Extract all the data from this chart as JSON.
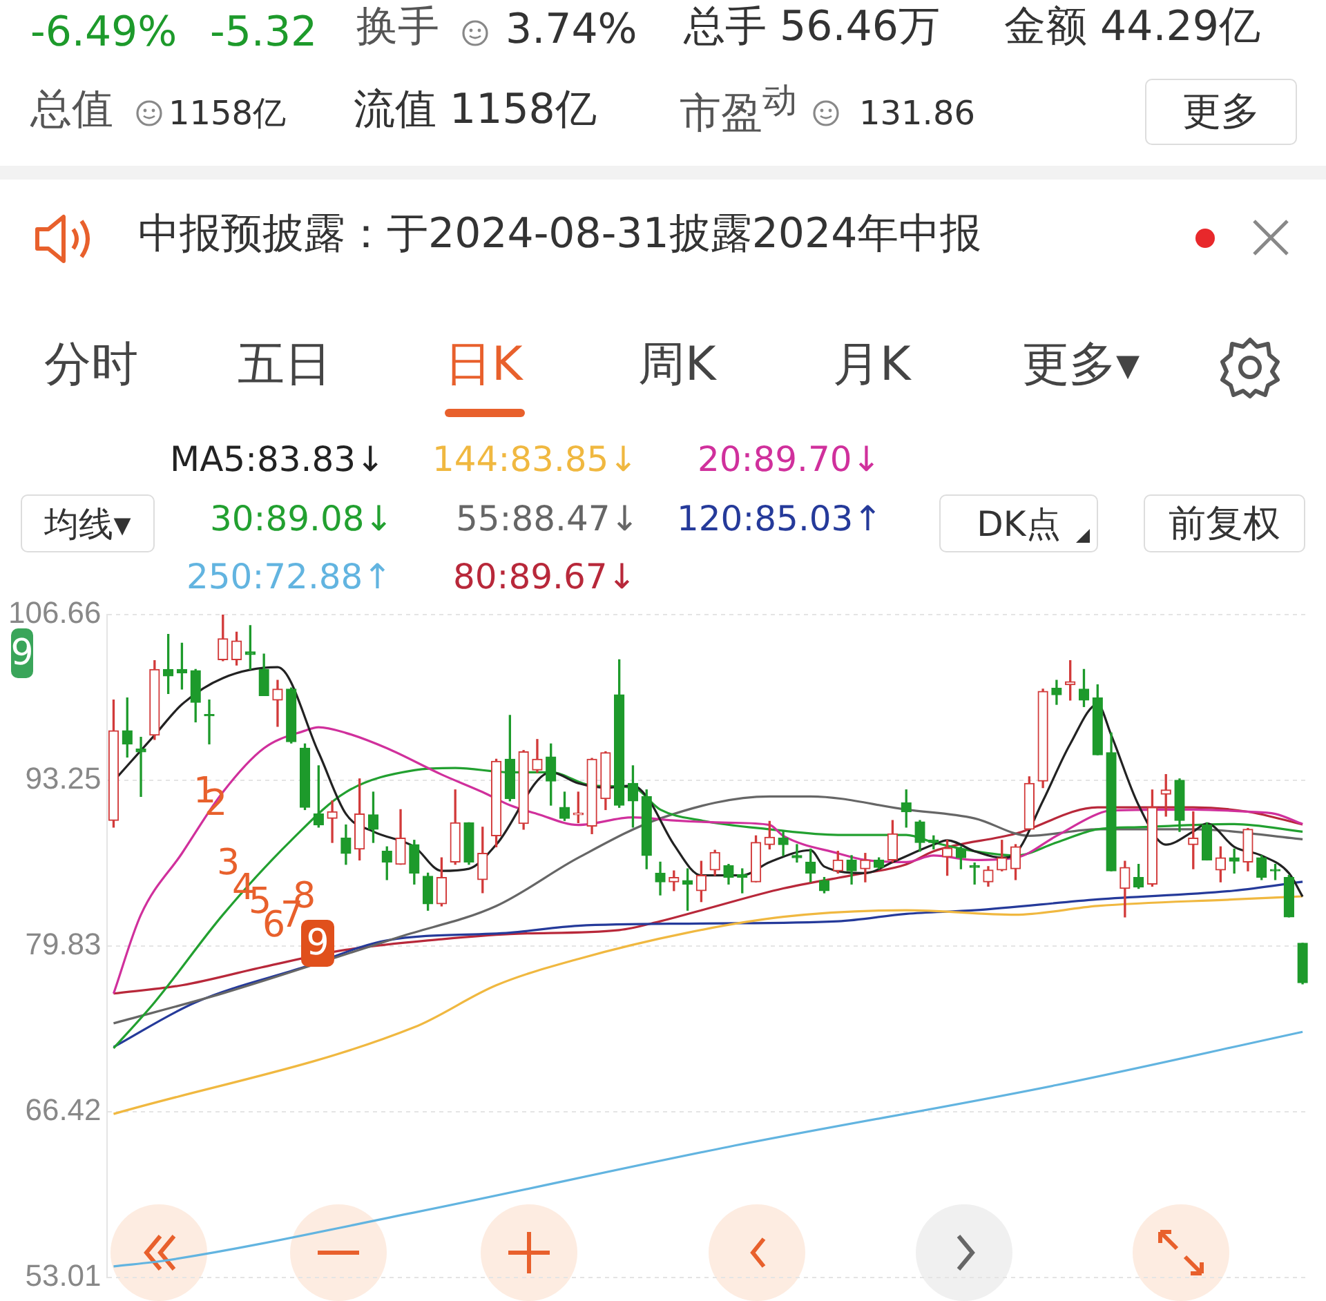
{
  "chart_data": {
    "type": "candlestick",
    "categories": [
      null,
      null,
      null,
      null,
      null,
      null,
      null,
      null,
      null,
      null,
      null,
      null,
      null,
      null,
      null,
      null,
      null,
      null,
      null,
      null,
      null,
      null,
      null,
      null,
      null,
      null,
      null,
      null,
      null,
      null,
      null,
      null,
      null,
      null,
      null,
      null,
      null,
      null,
      null,
      null,
      null,
      null,
      null,
      null,
      null,
      null,
      null,
      null,
      null,
      null,
      null,
      null,
      null,
      null,
      null,
      null,
      null,
      null,
      null,
      null,
      null,
      null,
      null,
      null,
      null,
      null,
      null,
      null,
      null,
      null,
      null,
      null,
      null,
      null,
      null,
      null,
      null,
      null,
      null,
      null,
      null,
      null,
      null,
      null,
      null,
      null,
      null,
      null
    ],
    "ohlc": [
      [
        89.99,
        99.74,
        89.45,
        97.26
      ],
      [
        97.26,
        99.92,
        95.13,
        96.19
      ],
      [
        95.77,
        96.73,
        91.94,
        95.55
      ],
      [
        96.9,
        102.93,
        96.55,
        102.22
      ],
      [
        102.22,
        105.06,
        100.27,
        101.69
      ],
      [
        102.22,
        104.35,
        100.63,
        101.94
      ],
      [
        102.12,
        102.22,
        97.97,
        99.56
      ],
      [
        98.57,
        99.74,
        96.19,
        98.46
      ],
      [
        103.0,
        106.66,
        102.93,
        104.71
      ],
      [
        103.0,
        105.24,
        102.58,
        104.53
      ],
      [
        103.64,
        105.77,
        102.22,
        103.43
      ],
      [
        102.22,
        103.47,
        100.1,
        100.1
      ],
      [
        99.74,
        101.34,
        97.61,
        100.63
      ],
      [
        100.63,
        100.73,
        96.26,
        96.37
      ],
      [
        95.84,
        96.19,
        90.87,
        91.05
      ],
      [
        90.52,
        94.42,
        89.45,
        89.63
      ],
      [
        90.16,
        91.58,
        88.21,
        90.7
      ],
      [
        88.57,
        89.63,
        86.44,
        87.33
      ],
      [
        87.68,
        93.36,
        86.79,
        90.52
      ],
      [
        90.45,
        92.29,
        88.21,
        89.28
      ],
      [
        87.5,
        87.86,
        85.2,
        86.62
      ],
      [
        86.44,
        90.87,
        86.44,
        88.57
      ],
      [
        88.04,
        88.39,
        84.84,
        85.73
      ],
      [
        85.48,
        85.73,
        82.72,
        83.25
      ],
      [
        83.25,
        86.97,
        83.07,
        85.38
      ],
      [
        86.62,
        92.47,
        86.44,
        89.81
      ],
      [
        89.81,
        89.81,
        86.44,
        86.62
      ],
      [
        85.2,
        89.45,
        84.14,
        87.33
      ],
      [
        88.75,
        94.95,
        87.86,
        94.78
      ],
      [
        94.95,
        98.5,
        91.58,
        91.76
      ],
      [
        89.74,
        95.66,
        89.28,
        95.56
      ],
      [
        94.07,
        96.55,
        93.89,
        94.95
      ],
      [
        95.13,
        96.19,
        91.23,
        93.18
      ],
      [
        91.05,
        92.29,
        89.99,
        90.16
      ],
      [
        90.45,
        92.29,
        89.81,
        90.59
      ],
      [
        89.53,
        95.02,
        88.92,
        94.95
      ],
      [
        91.76,
        95.56,
        90.87,
        95.49
      ],
      [
        100.17,
        103.0,
        91.05,
        91.23
      ],
      [
        93.0,
        94.42,
        89.45,
        91.58
      ],
      [
        91.94,
        92.47,
        86.08,
        87.15
      ],
      [
        85.73,
        86.62,
        83.96,
        85.02
      ],
      [
        85.02,
        85.91,
        84.31,
        85.38
      ],
      [
        85.13,
        86.08,
        82.72,
        84.84
      ],
      [
        84.31,
        86.69,
        83.42,
        85.55
      ],
      [
        85.98,
        87.58,
        85.55,
        87.4
      ],
      [
        86.33,
        86.44,
        84.84,
        85.38
      ],
      [
        85.62,
        86.08,
        84.13,
        85.38
      ],
      [
        85.02,
        88.75,
        85.02,
        88.21
      ],
      [
        88.04,
        89.92,
        87.68,
        88.64
      ],
      [
        88.57,
        89.17,
        87.15,
        88.04
      ],
      [
        87.15,
        88.04,
        86.62,
        86.97
      ],
      [
        86.62,
        87.68,
        85.02,
        85.73
      ],
      [
        85.13,
        85.38,
        84.13,
        84.31
      ],
      [
        85.91,
        87.5,
        85.73,
        86.79
      ],
      [
        86.79,
        87.15,
        84.84,
        85.91
      ],
      [
        86.08,
        87.33,
        85.02,
        86.79
      ],
      [
        86.79,
        86.97,
        86.08,
        86.19
      ],
      [
        86.79,
        89.99,
        86.62,
        88.92
      ],
      [
        91.41,
        92.47,
        89.45,
        90.7
      ],
      [
        89.88,
        89.99,
        87.5,
        88.21
      ],
      [
        88.39,
        88.75,
        87.68,
        88.21
      ],
      [
        87.04,
        88.39,
        85.55,
        87.75
      ],
      [
        87.68,
        87.86,
        86.08,
        86.97
      ],
      [
        86.33,
        86.55,
        84.84,
        86.19
      ],
      [
        85.02,
        86.26,
        84.67,
        85.98
      ],
      [
        85.98,
        88.39,
        85.91,
        86.97
      ],
      [
        86.08,
        88.04,
        85.2,
        87.86
      ],
      [
        89.28,
        93.53,
        89.28,
        93.0
      ],
      [
        93.18,
        100.63,
        92.65,
        100.45
      ],
      [
        100.7,
        101.34,
        99.39,
        100.17
      ],
      [
        100.98,
        102.93,
        99.74,
        101.23
      ],
      [
        100.63,
        102.22,
        99.21,
        99.74
      ],
      [
        99.92,
        100.98,
        95.31,
        95.31
      ],
      [
        95.49,
        97.08,
        85.91,
        85.91
      ],
      [
        84.49,
        86.69,
        82.18,
        86.19
      ],
      [
        85.38,
        86.44,
        84.49,
        84.6
      ],
      [
        84.84,
        92.47,
        84.67,
        91.05
      ],
      [
        92.12,
        93.71,
        90.34,
        92.47
      ],
      [
        93.25,
        93.36,
        89.1,
        89.99
      ],
      [
        88.04,
        90.7,
        86.08,
        88.57
      ],
      [
        89.63,
        89.81,
        86.79,
        86.79
      ],
      [
        85.98,
        87.86,
        85.02,
        86.97
      ],
      [
        86.97,
        87.68,
        85.73,
        86.69
      ],
      [
        86.62,
        89.35,
        85.91,
        89.28
      ],
      [
        86.97,
        87.15,
        85.2,
        85.38
      ],
      [
        85.98,
        86.44,
        85.2,
        85.91
      ],
      [
        85.38,
        85.55,
        82.18,
        82.18
      ],
      [
        80.05,
        80.05,
        76.76,
        76.86
      ]
    ],
    "colors": [
      "#d23a3a",
      "#1d9a2b",
      "#1d9a2b",
      "#d23a3a",
      "#1d9a2b",
      "#1d9a2b",
      "#1d9a2b",
      "#1d9a2b",
      "#d23a3a",
      "#d23a3a",
      "#1d9a2b",
      "#1d9a2b",
      "#d23a3a",
      "#1d9a2b",
      "#1d9a2b",
      "#1d9a2b",
      "#d23a3a",
      "#1d9a2b",
      "#d23a3a",
      "#1d9a2b",
      "#1d9a2b",
      "#d23a3a",
      "#1d9a2b",
      "#1d9a2b",
      "#d23a3a",
      "#d23a3a",
      "#1d9a2b",
      "#d23a3a",
      "#d23a3a",
      "#1d9a2b",
      "#d23a3a",
      "#d23a3a",
      "#1d9a2b",
      "#1d9a2b",
      "#d23a3a",
      "#d23a3a",
      "#d23a3a",
      "#1d9a2b",
      "#1d9a2b",
      "#1d9a2b",
      "#1d9a2b",
      "#d23a3a",
      "#1d9a2b",
      "#d23a3a",
      "#d23a3a",
      "#1d9a2b",
      "#1d9a2b",
      "#d23a3a",
      "#d23a3a",
      "#1d9a2b",
      "#1d9a2b",
      "#1d9a2b",
      "#1d9a2b",
      "#d23a3a",
      "#1d9a2b",
      "#d23a3a",
      "#1d9a2b",
      "#d23a3a",
      "#1d9a2b",
      "#1d9a2b",
      "#1d9a2b",
      "#d23a3a",
      "#1d9a2b",
      "#1d9a2b",
      "#d23a3a",
      "#d23a3a",
      "#d23a3a",
      "#d23a3a",
      "#d23a3a",
      "#1d9a2b",
      "#d23a3a",
      "#1d9a2b",
      "#1d9a2b",
      "#1d9a2b",
      "#d23a3a",
      "#1d9a2b",
      "#d23a3a",
      "#d23a3a",
      "#1d9a2b",
      "#d23a3a",
      "#1d9a2b",
      "#d23a3a",
      "#1d9a2b",
      "#d23a3a",
      "#1d9a2b",
      "#1d9a2b",
      "#1d9a2b",
      "#1d9a2b"
    ],
    "series": [
      {
        "type": "line",
        "name": "MA5:83.83↓",
        "color": "#222222",
        "values": [
          93.18,
          null,
          null,
          96.9,
          null,
          99.39,
          null,
          null,
          101.52,
          null,
          null,
          null,
          102.4,
          null,
          null,
          95.49,
          null,
          90.52,
          null,
          89.1,
          null,
          null,
          87.86,
          null,
          85.91,
          null,
          86.08,
          null,
          88.04,
          null,
          null,
          null,
          93.89,
          null,
          93.0,
          null,
          92.65,
          null,
          92.82,
          91.94,
          null,
          88.04,
          null,
          85.55,
          null,
          null,
          85.55,
          null,
          86.62,
          null,
          null,
          87.58,
          86.26,
          null,
          null,
          85.73,
          null,
          86.62,
          null,
          null,
          88.04,
          88.39,
          null,
          87.5,
          null,
          86.97,
          87.33,
          null,
          91.58,
          null,
          96.19,
          null,
          99.39,
          96.9,
          null,
          91.23,
          null,
          88.04,
          null,
          89.1,
          89.74,
          null,
          87.86,
          null,
          87.15,
          null,
          85.73,
          83.83
        ]
      },
      {
        "type": "line",
        "name": "144:83.85↓",
        "color": "#f0b840",
        "values": [
          66.23,
          null,
          null,
          null,
          null,
          null,
          null,
          null,
          null,
          null,
          null,
          null,
          null,
          null,
          null,
          null,
          null,
          null,
          null,
          null,
          null,
          null,
          73.25,
          null,
          null,
          null,
          null,
          null,
          76.65,
          null,
          null,
          null,
          null,
          null,
          78.78,
          null,
          null,
          null,
          null,
          null,
          null,
          null,
          80.91,
          null,
          null,
          null,
          null,
          null,
          null,
          82.19,
          null,
          null,
          null,
          null,
          null,
          null,
          null,
          null,
          82.72,
          null,
          null,
          null,
          null,
          null,
          null,
          null,
          82.36,
          null,
          null,
          null,
          null,
          null,
          83.07,
          null,
          null,
          null,
          null,
          null,
          null,
          null,
          null,
          null,
          83.6,
          null,
          null,
          null,
          null,
          83.85
        ]
      },
      {
        "type": "line",
        "name": "20:89.70↓",
        "color": "#d0309c",
        "values": [
          75.98,
          null,
          82.36,
          null,
          null,
          87.33,
          null,
          null,
          92.29,
          null,
          null,
          95.84,
          null,
          null,
          97.26,
          97.54,
          null,
          97.08,
          null,
          null,
          95.84,
          null,
          null,
          null,
          93.71,
          null,
          null,
          92.29,
          null,
          91.23,
          null,
          90.52,
          null,
          null,
          89.63,
          null,
          null,
          null,
          90.24,
          null,
          null,
          89.99,
          null,
          null,
          null,
          89.81,
          null,
          null,
          89.63,
          88.75,
          null,
          null,
          null,
          87.33,
          null,
          86.79,
          null,
          null,
          86.62,
          null,
          87.15,
          null,
          null,
          86.79,
          null,
          null,
          86.97,
          null,
          null,
          88.75,
          null,
          null,
          90.52,
          90.8,
          null,
          null,
          null,
          null,
          null,
          90.87,
          null,
          null,
          null,
          90.7,
          null,
          90.52,
          null,
          89.7
        ]
      },
      {
        "type": "line",
        "name": "30:89.08↓",
        "color": "#22a030",
        "values": [
          71.55,
          null,
          null,
          75.27,
          null,
          null,
          null,
          null,
          82.36,
          null,
          null,
          null,
          null,
          88.39,
          null,
          null,
          null,
          92.29,
          null,
          null,
          null,
          null,
          94.06,
          null,
          null,
          94.24,
          null,
          null,
          null,
          93.89,
          null,
          null,
          93.89,
          null,
          null,
          92.82,
          null,
          null,
          92.65,
          null,
          90.87,
          null,
          null,
          89.99,
          null,
          null,
          null,
          null,
          89.28,
          null,
          null,
          null,
          null,
          88.82,
          null,
          null,
          null,
          null,
          88.82,
          null,
          88.21,
          null,
          null,
          87.5,
          null,
          null,
          87.15,
          null,
          null,
          88.21,
          null,
          null,
          89.28,
          null,
          null,
          89.45,
          null,
          null,
          null,
          null,
          null,
          null,
          89.7,
          null,
          null,
          null,
          null,
          89.08
        ]
      },
      {
        "type": "line",
        "name": "55:88.47↓",
        "color": "#666666",
        "values": [
          73.57,
          null,
          null,
          null,
          null,
          null,
          null,
          null,
          76.0,
          null,
          null,
          null,
          null,
          null,
          null,
          null,
          null,
          null,
          79.52,
          null,
          null,
          80.59,
          null,
          null,
          null,
          null,
          null,
          null,
          83.07,
          null,
          null,
          null,
          null,
          null,
          86.97,
          null,
          null,
          null,
          null,
          null,
          90.16,
          null,
          null,
          null,
          null,
          null,
          null,
          null,
          91.94,
          null,
          null,
          91.94,
          null,
          null,
          null,
          null,
          null,
          null,
          90.87,
          null,
          null,
          null,
          null,
          90.16,
          null,
          null,
          null,
          88.75,
          null,
          null,
          null,
          null,
          89.28,
          null,
          null,
          null,
          null,
          null,
          null,
          89.28,
          null,
          null,
          null,
          null,
          null,
          null,
          null,
          88.47
        ]
      },
      {
        "type": "line",
        "name": "120:85.03↑",
        "color": "#253a9a",
        "values": [
          71.65,
          null,
          null,
          null,
          null,
          null,
          75.27,
          null,
          null,
          null,
          null,
          null,
          null,
          null,
          78.14,
          null,
          null,
          null,
          null,
          null,
          80.28,
          null,
          null,
          null,
          null,
          null,
          null,
          null,
          null,
          80.91,
          null,
          null,
          null,
          null,
          81.47,
          null,
          null,
          null,
          null,
          null,
          null,
          null,
          null,
          81.65,
          null,
          null,
          null,
          null,
          null,
          null,
          null,
          null,
          null,
          81.83,
          null,
          null,
          null,
          null,
          82.43,
          null,
          null,
          null,
          null,
          82.72,
          null,
          null,
          null,
          null,
          null,
          null,
          null,
          null,
          83.6,
          null,
          null,
          null,
          null,
          null,
          null,
          null,
          null,
          null,
          84.31,
          null,
          null,
          null,
          null,
          85.03
        ]
      },
      {
        "type": "line",
        "name": "250:72.88↑",
        "color": "#62b4e0",
        "values": [
          53.89,
          null,
          null,
          null,
          54.4,
          null,
          null,
          null,
          null,
          null,
          null,
          null,
          null,
          null,
          null,
          null,
          null,
          null,
          null,
          null,
          null,
          null,
          58.25,
          null,
          null,
          null,
          null,
          null,
          null,
          null,
          null,
          null,
          null,
          null,
          null,
          null,
          null,
          null,
          null,
          null,
          null,
          null,
          null,
          null,
          null,
          63.57,
          null,
          null,
          null,
          null,
          null,
          null,
          null,
          null,
          null,
          null,
          null,
          null,
          null,
          null,
          null,
          null,
          null,
          null,
          null,
          null,
          null,
          null,
          null,
          68.57,
          null,
          null,
          null,
          null,
          null,
          null,
          null,
          null,
          null,
          null,
          null,
          null,
          null,
          null,
          null,
          null,
          null,
          72.88
        ]
      },
      {
        "type": "line",
        "name": "80:89.67↓",
        "color": "#b8283a",
        "values": [
          75.98,
          null,
          null,
          null,
          null,
          76.65,
          null,
          null,
          null,
          null,
          null,
          78.14,
          null,
          null,
          null,
          null,
          null,
          79.52,
          null,
          null,
          null,
          null,
          null,
          null,
          80.38,
          null,
          null,
          null,
          null,
          80.8,
          null,
          null,
          null,
          null,
          null,
          null,
          null,
          81.12,
          null,
          null,
          81.83,
          null,
          null,
          82.72,
          null,
          null,
          null,
          null,
          null,
          84.49,
          null,
          null,
          null,
          null,
          85.55,
          null,
          null,
          null,
          86.44,
          null,
          87.5,
          null,
          null,
          null,
          null,
          null,
          88.92,
          null,
          null,
          null,
          null,
          null,
          91.05,
          null,
          null,
          null,
          null,
          null,
          null,
          91.05,
          null,
          null,
          null,
          90.7,
          null,
          null,
          null,
          89.67
        ]
      }
    ],
    "ylim": [
      53.01,
      106.66
    ],
    "yticks": [
      53.01,
      66.42,
      79.83,
      93.25,
      106.66
    ],
    "grid": "y",
    "legend": "top",
    "marker": "none",
    "tick_labels": "y",
    "annotations": [
      "-6.49%",
      "-5.32",
      "换手",
      "3.74%",
      "总手 56.46万",
      "金额 44.29亿",
      "总值",
      "1158亿",
      "流值 1158亿",
      "市盈$^{动}$",
      "131.86",
      "更多",
      "中报预披露：于2024-08-31披露2024年中报",
      "分时",
      "五日",
      "日K",
      "周K",
      "月K",
      "更多▾",
      "均线▾",
      "DK点",
      "前复权",
      "9",
      "1",
      "2",
      "3",
      "4",
      "5",
      "6",
      "7",
      "8",
      "9"
    ]
  }
}
